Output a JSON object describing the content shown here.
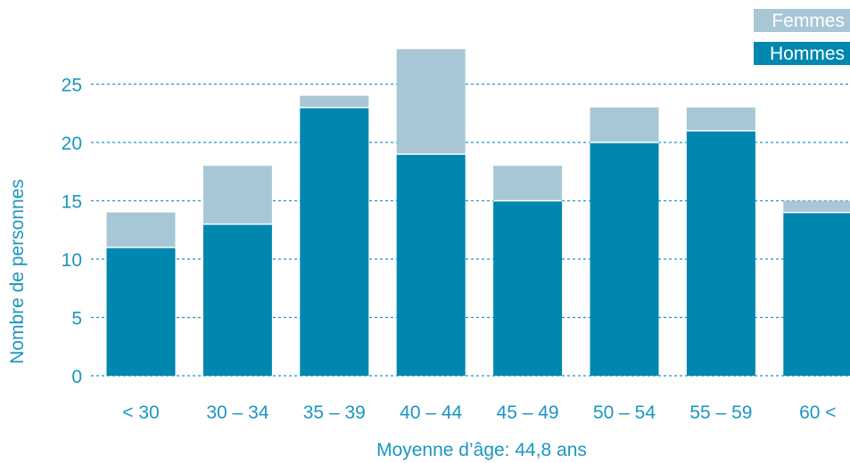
{
  "colors": {
    "hommes": "#0087AF",
    "femmes": "#A8C7D6",
    "axis_text": "#1B96C2",
    "gridline": "#1B96C2"
  },
  "legend": {
    "femmes": "Femmes",
    "hommes": "Hommes"
  },
  "chart_data": {
    "type": "bar",
    "stacked": true,
    "categories": [
      "< 30",
      "30 – 34",
      "35 – 39",
      "40 – 44",
      "45 – 49",
      "50 – 54",
      "55 – 59",
      "60 <"
    ],
    "series": [
      {
        "name": "Hommes",
        "values": [
          11,
          13,
          23,
          19,
          15,
          20,
          21,
          14
        ]
      },
      {
        "name": "Femmes",
        "values": [
          3,
          5,
          1,
          9,
          3,
          3,
          2,
          1
        ]
      }
    ],
    "title": "",
    "xlabel": "Moyenne d’âge: 44,8 ans",
    "ylabel": "Nombre de personnes",
    "ylim": [
      0,
      28
    ],
    "yticks": [
      0,
      5,
      10,
      15,
      20,
      25
    ],
    "grid": true,
    "legend_position": "top-right"
  }
}
